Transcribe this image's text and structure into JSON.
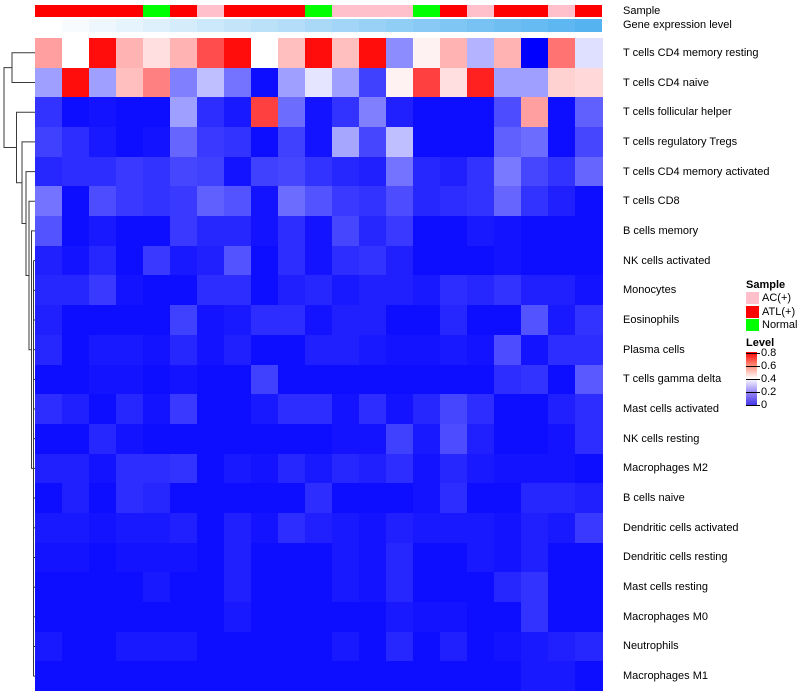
{
  "annotations": {
    "sample_label": "Sample",
    "expression_label": "Gene expression level"
  },
  "legend": {
    "sample_title": "Sample",
    "sample_items": [
      {
        "label": "AC(+)",
        "color": "#FFC0CB"
      },
      {
        "label": "ATL(+)",
        "color": "#FF0000"
      },
      {
        "label": "Normal",
        "color": "#00FF00"
      }
    ],
    "level_title": "Level",
    "level_ticks": [
      "0.8",
      "0.6",
      "0.4",
      "0.2",
      "0"
    ]
  },
  "chart_data": {
    "type": "heatmap",
    "title": "",
    "value_range": [
      0,
      0.8
    ],
    "colormap": {
      "low": "#0000FF",
      "mid": "#FFFFFF",
      "high": "#FF0000",
      "mid_value": 0.4
    },
    "grid": false,
    "legend_position": "right",
    "rows": [
      "T cells CD4 memory resting",
      "T cells CD4 naive",
      "T cells follicular helper",
      "T cells regulatory  Tregs",
      "T cells CD4 memory activated",
      "T cells CD8",
      "B cells memory",
      "NK cells activated",
      "Monocytes",
      "Eosinophils",
      "Plasma cells",
      "T cells gamma delta",
      "Mast cells activated",
      "NK cells resting",
      "Macrophages M2",
      "B cells naive",
      "Dendritic cells activated",
      "Dendritic cells resting",
      "Mast cells resting",
      "Macrophages M0",
      "Neutrophils",
      "Macrophages M1"
    ],
    "columns_count": 21,
    "column_sample_group": [
      "ATL(+)",
      "ATL(+)",
      "ATL(+)",
      "ATL(+)",
      "Normal",
      "ATL(+)",
      "AC(+)",
      "ATL(+)",
      "ATL(+)",
      "ATL(+)",
      "Normal",
      "AC(+)",
      "AC(+)",
      "AC(+)",
      "Normal",
      "ATL(+)",
      "AC(+)",
      "ATL(+)",
      "ATL(+)",
      "AC(+)",
      "ATL(+)"
    ],
    "column_expression_gradient": {
      "from": "#FFFFFF",
      "to": "#55B3F0",
      "note": "columns ordered by increasing gene expression level"
    },
    "values": [
      [
        0.55,
        0.4,
        0.78,
        0.52,
        0.45,
        0.52,
        0.68,
        0.78,
        0.4,
        0.5,
        0.78,
        0.5,
        0.78,
        0.22,
        0.42,
        0.52,
        0.28,
        0.52,
        0.0,
        0.62,
        0.35
      ],
      [
        0.25,
        0.78,
        0.25,
        0.5,
        0.6,
        0.2,
        0.3,
        0.18,
        0.02,
        0.25,
        0.36,
        0.25,
        0.1,
        0.42,
        0.7,
        0.45,
        0.75,
        0.25,
        0.25,
        0.47,
        0.46
      ],
      [
        0.08,
        0.02,
        0.03,
        0.02,
        0.02,
        0.25,
        0.07,
        0.04,
        0.7,
        0.17,
        0.03,
        0.08,
        0.2,
        0.05,
        0.02,
        0.02,
        0.02,
        0.12,
        0.55,
        0.02,
        0.15
      ],
      [
        0.1,
        0.07,
        0.04,
        0.02,
        0.03,
        0.16,
        0.09,
        0.08,
        0.02,
        0.1,
        0.03,
        0.26,
        0.11,
        0.3,
        0.02,
        0.02,
        0.02,
        0.15,
        0.17,
        0.02,
        0.11
      ],
      [
        0.06,
        0.07,
        0.07,
        0.09,
        0.08,
        0.11,
        0.1,
        0.03,
        0.1,
        0.11,
        0.08,
        0.06,
        0.05,
        0.18,
        0.06,
        0.05,
        0.08,
        0.19,
        0.11,
        0.08,
        0.16
      ],
      [
        0.18,
        0.02,
        0.12,
        0.09,
        0.08,
        0.09,
        0.15,
        0.13,
        0.03,
        0.17,
        0.13,
        0.09,
        0.08,
        0.12,
        0.06,
        0.07,
        0.08,
        0.16,
        0.08,
        0.05,
        0.02
      ],
      [
        0.13,
        0.02,
        0.04,
        0.02,
        0.02,
        0.09,
        0.06,
        0.06,
        0.03,
        0.07,
        0.03,
        0.11,
        0.06,
        0.09,
        0.02,
        0.02,
        0.04,
        0.03,
        0.02,
        0.02,
        0.02
      ],
      [
        0.05,
        0.03,
        0.06,
        0.02,
        0.09,
        0.04,
        0.05,
        0.13,
        0.02,
        0.07,
        0.03,
        0.07,
        0.08,
        0.05,
        0.02,
        0.02,
        0.02,
        0.03,
        0.02,
        0.02,
        0.02
      ],
      [
        0.06,
        0.06,
        0.09,
        0.03,
        0.02,
        0.02,
        0.07,
        0.07,
        0.02,
        0.05,
        0.06,
        0.04,
        0.05,
        0.05,
        0.04,
        0.07,
        0.06,
        0.08,
        0.05,
        0.05,
        0.03
      ],
      [
        0.05,
        0.02,
        0.02,
        0.02,
        0.02,
        0.1,
        0.03,
        0.04,
        0.07,
        0.07,
        0.03,
        0.05,
        0.05,
        0.02,
        0.02,
        0.06,
        0.02,
        0.02,
        0.13,
        0.04,
        0.08
      ],
      [
        0.06,
        0.02,
        0.04,
        0.04,
        0.03,
        0.06,
        0.03,
        0.05,
        0.02,
        0.02,
        0.05,
        0.05,
        0.04,
        0.03,
        0.03,
        0.04,
        0.03,
        0.12,
        0.03,
        0.07,
        0.07
      ],
      [
        0.02,
        0.02,
        0.03,
        0.03,
        0.02,
        0.03,
        0.02,
        0.02,
        0.1,
        0.02,
        0.02,
        0.02,
        0.02,
        0.02,
        0.02,
        0.02,
        0.02,
        0.07,
        0.08,
        0.02,
        0.14
      ],
      [
        0.07,
        0.05,
        0.02,
        0.06,
        0.03,
        0.09,
        0.02,
        0.02,
        0.04,
        0.07,
        0.07,
        0.03,
        0.07,
        0.03,
        0.06,
        0.11,
        0.07,
        0.02,
        0.02,
        0.05,
        0.07
      ],
      [
        0.02,
        0.02,
        0.06,
        0.03,
        0.02,
        0.02,
        0.02,
        0.02,
        0.02,
        0.02,
        0.02,
        0.03,
        0.03,
        0.1,
        0.04,
        0.12,
        0.05,
        0.02,
        0.02,
        0.03,
        0.07
      ],
      [
        0.05,
        0.05,
        0.03,
        0.07,
        0.07,
        0.08,
        0.02,
        0.04,
        0.03,
        0.06,
        0.04,
        0.06,
        0.05,
        0.07,
        0.03,
        0.06,
        0.04,
        0.03,
        0.03,
        0.03,
        0.02
      ],
      [
        0.02,
        0.05,
        0.02,
        0.07,
        0.06,
        0.02,
        0.02,
        0.02,
        0.02,
        0.02,
        0.07,
        0.02,
        0.02,
        0.02,
        0.03,
        0.07,
        0.02,
        0.02,
        0.06,
        0.06,
        0.05
      ],
      [
        0.04,
        0.04,
        0.03,
        0.04,
        0.04,
        0.05,
        0.02,
        0.05,
        0.03,
        0.07,
        0.05,
        0.04,
        0.03,
        0.05,
        0.04,
        0.04,
        0.04,
        0.03,
        0.05,
        0.04,
        0.09
      ],
      [
        0.03,
        0.03,
        0.02,
        0.03,
        0.03,
        0.03,
        0.02,
        0.05,
        0.02,
        0.02,
        0.02,
        0.04,
        0.03,
        0.06,
        0.02,
        0.02,
        0.04,
        0.03,
        0.05,
        0.02,
        0.02
      ],
      [
        0.02,
        0.02,
        0.02,
        0.02,
        0.04,
        0.02,
        0.02,
        0.05,
        0.02,
        0.02,
        0.02,
        0.04,
        0.03,
        0.06,
        0.02,
        0.02,
        0.02,
        0.06,
        0.08,
        0.02,
        0.02
      ],
      [
        0.02,
        0.02,
        0.02,
        0.02,
        0.02,
        0.02,
        0.02,
        0.04,
        0.02,
        0.02,
        0.02,
        0.02,
        0.02,
        0.04,
        0.03,
        0.03,
        0.02,
        0.02,
        0.08,
        0.02,
        0.02
      ],
      [
        0.04,
        0.02,
        0.02,
        0.04,
        0.04,
        0.04,
        0.02,
        0.02,
        0.02,
        0.02,
        0.02,
        0.04,
        0.02,
        0.06,
        0.02,
        0.05,
        0.02,
        0.03,
        0.04,
        0.05,
        0.06
      ],
      [
        0.02,
        0.02,
        0.02,
        0.02,
        0.02,
        0.02,
        0.02,
        0.02,
        0.02,
        0.02,
        0.02,
        0.02,
        0.02,
        0.02,
        0.02,
        0.02,
        0.02,
        0.02,
        0.04,
        0.04,
        0.02
      ]
    ]
  }
}
